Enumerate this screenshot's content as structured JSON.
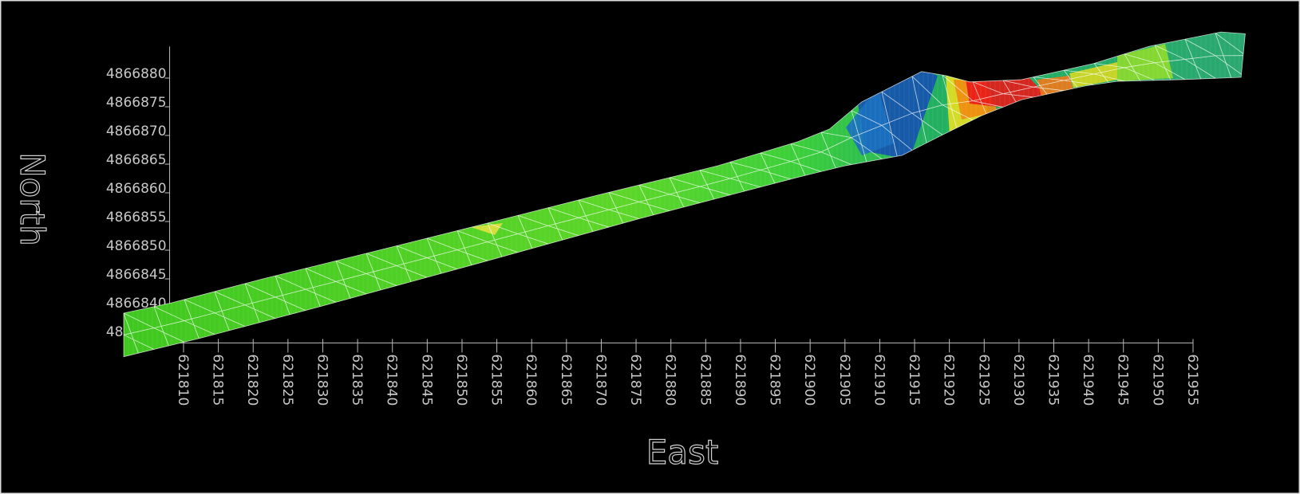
{
  "chart_data": {
    "type": "surface",
    "xlabel": "East",
    "ylabel": "North",
    "xlim": [
      621808,
      621955
    ],
    "ylim": [
      4866833,
      4866883
    ],
    "xticks": [
      621810,
      621815,
      621820,
      621825,
      621830,
      621835,
      621840,
      621845,
      621850,
      621855,
      621860,
      621865,
      621870,
      621875,
      621880,
      621885,
      621890,
      621895,
      621900,
      621905,
      621910,
      621915,
      621920,
      621925,
      621930,
      621935,
      621940,
      621945,
      621950,
      621955
    ],
    "yticks": [
      4866835,
      4866840,
      4866845,
      4866850,
      4866855,
      4866860,
      4866865,
      4866870,
      4866875,
      4866880
    ],
    "surface": {
      "upper": {
        "x": [
          621801.4,
          621808.3,
          621821.5,
          621835.2,
          621852.4,
          621869.6,
          621886.8,
          621898.3,
          621902.8,
          621907.4,
          621916.0,
          621919.5,
          621922.9,
          621930.4,
          621940.7,
          621948.7,
          621959.0,
          621962.5
        ],
        "y": [
          4866838.2,
          4866840.0,
          4866844.2,
          4866848.3,
          4866853.5,
          4866858.8,
          4866863.9,
          4866868.1,
          4866870.3,
          4866875.0,
          4866880.3,
          4866879.6,
          4866878.5,
          4866878.9,
          4866881.7,
          4866884.7,
          4866887.2,
          4866886.9
        ]
      },
      "lower": {
        "x": [
          621801.4,
          621812.3,
          621829.5,
          621852.4,
          621875.3,
          621898.3,
          621905.1,
          621913.2,
          621918.9,
          621924.6,
          621930.4,
          621939.5,
          621944.1,
          621953.3,
          621961.9
        ],
        "y": [
          4866830.6,
          4866833.8,
          4866839.3,
          4866846.9,
          4866854.6,
          4866861.9,
          4866863.9,
          4866865.7,
          4866869.2,
          4866872.6,
          4866875.4,
          4866877.8,
          4866878.6,
          4866878.9,
          4866879.3
        ]
      }
    }
  }
}
